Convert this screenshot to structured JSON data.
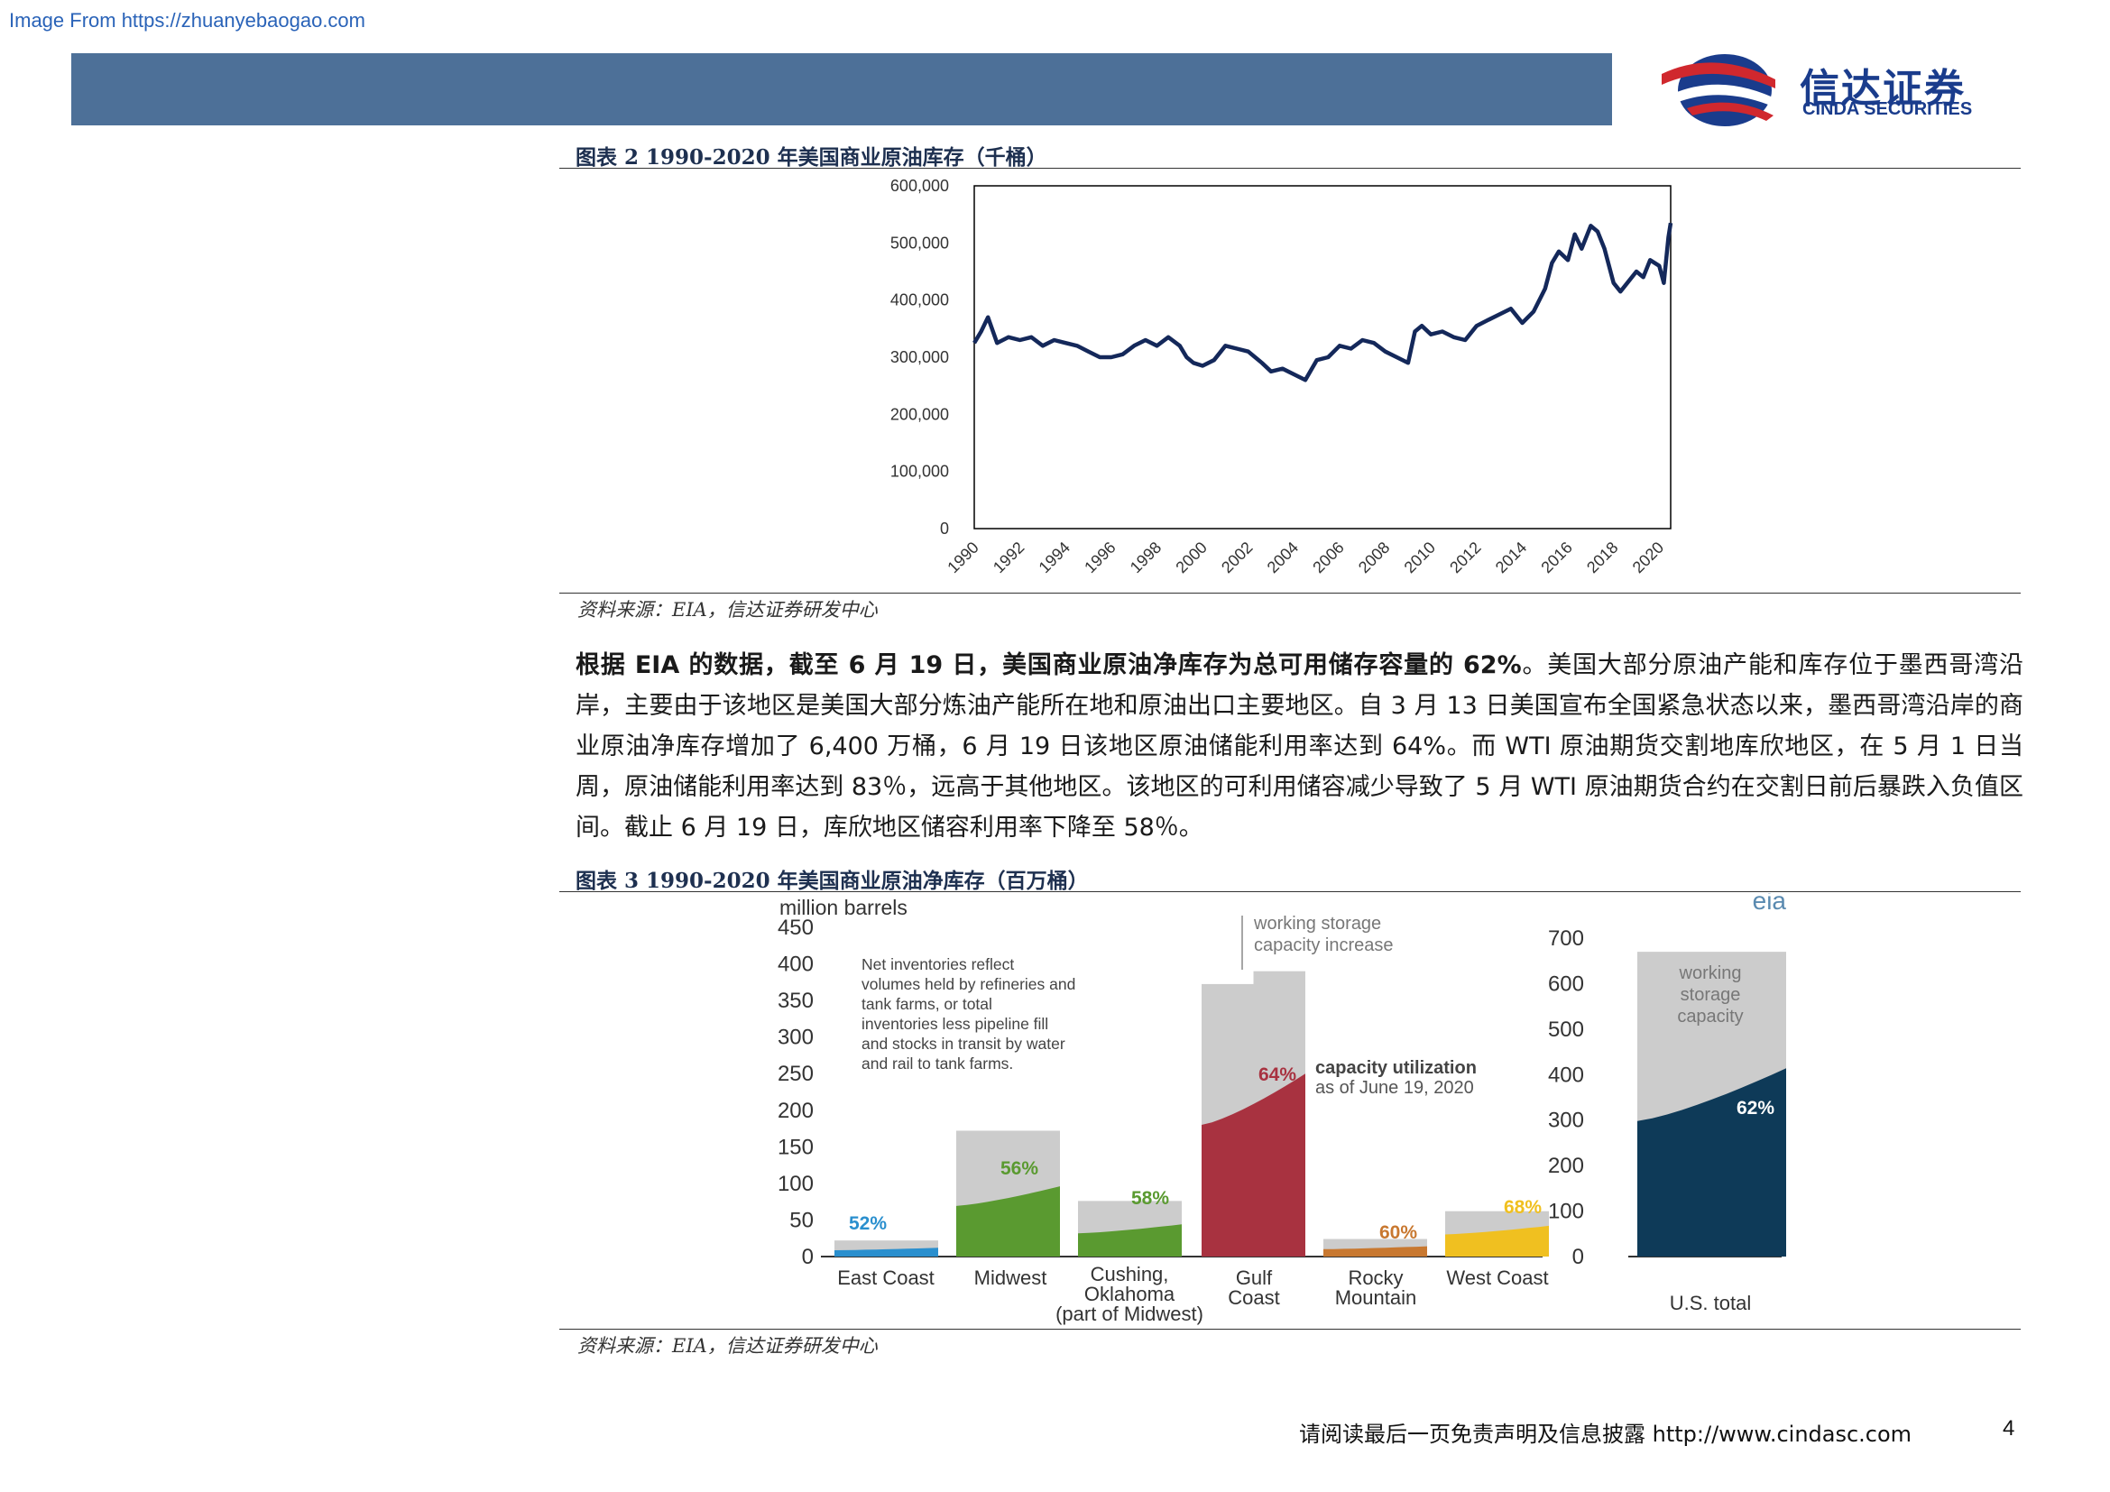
{
  "watermark": "Image From https://zhuanyebaogao.com",
  "brand": {
    "name_cn": "信达证券",
    "name_en": "CINDA SECURITIES",
    "logo_colors": [
      "#d0282e",
      "#1a3c8c"
    ]
  },
  "header_bar_color": "#4d7098",
  "figure2": {
    "title": "图表 2   1990-2020 年美国商业原油库存（千桶）",
    "source": "资料来源：EIA，信达证券研发中心"
  },
  "figure3": {
    "title": "图表 3   1990-2020 年美国商业原油净库存（百万桶）",
    "source": "资料来源：EIA，信达证券研发中心"
  },
  "paragraph": {
    "bold": "根据 EIA 的数据，截至 6 月 19 日，美国商业原油净库存为总可用储存容量的 62%",
    "rest": "。美国大部分原油产能和库存位于墨西哥湾沿岸，主要由于该地区是美国大部分炼油产能所在地和原油出口主要地区。自 3 月 13 日美国宣布全国紧急状态以来，墨西哥湾沿岸的商业原油净库存增加了 6,400 万桶，6 月 19 日该地区原油储能利用率达到 64%。而 WTI 原油期货交割地库欣地区，在 5 月 1 日当周，原油储能利用率达到 83％，远高于其他地区。该地区的可利用储容减少导致了 5 月 WTI 原油期货合约在交割日前后暴跌入负值区间。截止 6 月 19 日，库欣地区储容利用率下降至 58％。"
  },
  "footer": {
    "disclaimer": "请阅读最后一页免责声明及信息披露 http://www.cindasc.com",
    "page": "4"
  },
  "chart_data": [
    {
      "type": "line",
      "title": "",
      "ylim": [
        0,
        600000
      ],
      "yticks": [
        "600,000",
        "500,000",
        "400,000",
        "300,000",
        "200,000",
        "100,000",
        "0"
      ],
      "ytick_values": [
        600000,
        500000,
        400000,
        300000,
        200000,
        100000,
        0
      ],
      "xticks": [
        "1990",
        "1992",
        "1994",
        "1996",
        "1998",
        "2000",
        "2002",
        "2004",
        "2006",
        "2008",
        "2010",
        "2012",
        "2014",
        "2016",
        "2018",
        "2020"
      ],
      "xlim": [
        1990,
        2020.5
      ],
      "line_color": "#14285a",
      "series": [
        {
          "x": [
            1990,
            1990.3,
            1990.6,
            1991,
            1991.5,
            1992,
            1992.5,
            1993,
            1993.5,
            1994,
            1994.5,
            1995,
            1995.5,
            1996,
            1996.5,
            1997,
            1997.5,
            1998,
            1998.5,
            1999,
            1999.3,
            1999.6,
            2000,
            2000.5,
            2001,
            2001.5,
            2002,
            2002.3,
            2002.6,
            2003,
            2003.5,
            2004,
            2004.5,
            2005,
            2005.5,
            2006,
            2006.5,
            2007,
            2007.5,
            2008,
            2008.5,
            2009,
            2009.3,
            2009.6,
            2010,
            2010.5,
            2011,
            2011.5,
            2012,
            2012.5,
            2013,
            2013.5,
            2014,
            2014.5,
            2015,
            2015.3,
            2015.6,
            2016,
            2016.3,
            2016.6,
            2017,
            2017.3,
            2017.6,
            2018,
            2018.3,
            2018.6,
            2019,
            2019.3,
            2019.6,
            2020,
            2020.2,
            2020.4,
            2020.5
          ],
          "values": [
            325000,
            345000,
            370000,
            325000,
            335000,
            330000,
            335000,
            320000,
            330000,
            325000,
            320000,
            310000,
            300000,
            300000,
            305000,
            320000,
            330000,
            320000,
            335000,
            320000,
            300000,
            290000,
            285000,
            295000,
            320000,
            315000,
            310000,
            300000,
            290000,
            275000,
            280000,
            270000,
            260000,
            295000,
            300000,
            320000,
            315000,
            330000,
            325000,
            310000,
            300000,
            290000,
            345000,
            355000,
            340000,
            345000,
            335000,
            330000,
            355000,
            365000,
            375000,
            385000,
            360000,
            380000,
            420000,
            465000,
            485000,
            470000,
            515000,
            490000,
            530000,
            520000,
            490000,
            430000,
            415000,
            430000,
            450000,
            440000,
            470000,
            460000,
            430000,
            510000,
            535000
          ]
        }
      ]
    },
    {
      "type": "bar",
      "ylabel": "million barrels",
      "y_left_ticks": [
        "450",
        "400",
        "350",
        "300",
        "250",
        "200",
        "150",
        "100",
        "50",
        "0"
      ],
      "y_left_tick_values": [
        450,
        400,
        350,
        300,
        250,
        200,
        150,
        100,
        50,
        0
      ],
      "y_right_ticks": [
        "700",
        "600",
        "500",
        "400",
        "300",
        "200",
        "100",
        "0"
      ],
      "y_right_tick_values": [
        700,
        600,
        500,
        400,
        300,
        200,
        100,
        0
      ],
      "ylim_left": [
        0,
        450
      ],
      "ylim_right": [
        0,
        700
      ],
      "note": "Net inventories reflect volumes held by refineries and tank farms, or total inventories less pipeline fill and stocks in transit by water and rail to tank farms.",
      "annotation_storage": "working storage capacity increase",
      "annotation_util_title": "capacity utilization",
      "annotation_util_date": "as of June 19, 2020",
      "total_capacity_label": "working storage capacity",
      "eia_logo": "eia",
      "regions": [
        {
          "name": "East Coast",
          "capacity": 22,
          "inventory": 12,
          "utilization": "52%",
          "color": "#2a8fce"
        },
        {
          "name": "Midwest",
          "capacity": 172,
          "inventory": 96,
          "utilization": "56%",
          "color": "#5a9a30"
        },
        {
          "name": "Cushing, Oklahoma (part of Midwest)",
          "capacity": 76,
          "inventory": 44,
          "utilization": "58%",
          "color": "#5a9a30"
        },
        {
          "name": "Gulf Coast",
          "capacity": 390,
          "inventory": 250,
          "utilization": "64%",
          "color": "#a83240"
        },
        {
          "name": "Rocky Mountain",
          "capacity": 24,
          "inventory": 14,
          "utilization": "60%",
          "color": "#c87830"
        },
        {
          "name": "West Coast",
          "capacity": 62,
          "inventory": 42,
          "utilization": "68%",
          "color": "#f0c020"
        },
        {
          "name": "U.S. total",
          "capacity": 670,
          "inventory": 414,
          "utilization": "62%",
          "color": "#0e3a58"
        }
      ],
      "region_labels": [
        "East Coast",
        "Midwest",
        "Cushing,",
        "Oklahoma",
        "(part of Midwest)",
        "Gulf",
        "Coast",
        "Rocky",
        "Mountain",
        "West Coast",
        "U.S. total"
      ]
    }
  ]
}
